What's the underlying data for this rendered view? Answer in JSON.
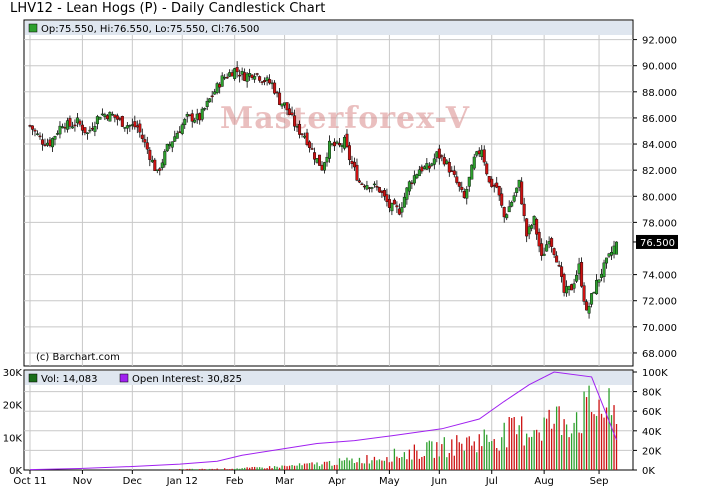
{
  "title": "LHV12 - Lean Hogs (P) - Daily Candlestick Chart",
  "ohlc_legend": "Op:75.550, Hi:76.550, Lo:75.550, Cl:76.500",
  "copyright": "(c) Barchart.com",
  "watermark": "Masterforex-V",
  "last_price_label": "76.500",
  "colors": {
    "up": "#2ea02e",
    "down": "#cc1111",
    "oi_line": "#a020f0",
    "vol_legend": "#1a6e1a",
    "grid": "#c8c8c8",
    "frame": "#000000",
    "panel_bg": "#ffffff",
    "legend_bg": "#dfe6ef"
  },
  "volume_legend": "Vol: 14,083",
  "oi_legend": "Open Interest: 30,825",
  "chart_data": [
    {
      "type": "candlestick",
      "ylim": [
        67,
        93.5
      ],
      "y_ticks": [
        "92.000",
        "90.000",
        "88.000",
        "86.000",
        "84.000",
        "82.000",
        "80.000",
        "78.000",
        "76.500",
        "74.000",
        "72.000",
        "70.000",
        "68.000"
      ],
      "y_tick_values": [
        92,
        90,
        88,
        86,
        84,
        82,
        80,
        78,
        76.5,
        74,
        72,
        70,
        68
      ],
      "x_ticks": [
        "Oct 11",
        "Nov",
        "Dec",
        "Jan 12",
        "Feb",
        "Mar",
        "Apr",
        "May",
        "Jun",
        "Jul",
        "Aug",
        "Sep"
      ],
      "x_tick_days": [
        0,
        21,
        41,
        61,
        82,
        102,
        123,
        144,
        164,
        185,
        206,
        228
      ],
      "last": {
        "open": 75.55,
        "high": 76.55,
        "low": 75.55,
        "close": 76.5
      },
      "close_path_days": [
        0,
        5,
        8,
        13,
        16,
        19,
        23,
        28,
        33,
        38,
        43,
        47,
        51,
        55,
        59,
        63,
        68,
        72,
        77,
        82,
        86,
        90,
        93,
        97,
        100,
        102,
        104,
        107,
        110,
        114,
        117,
        120,
        124,
        126,
        128,
        132,
        136,
        140,
        144,
        148,
        152,
        156,
        160,
        163,
        166,
        170,
        174,
        178,
        181,
        184,
        187,
        190,
        193,
        196,
        199,
        202,
        205,
        208,
        211,
        214,
        217,
        220,
        223,
        226,
        229,
        232,
        235
      ],
      "close_path_values": [
        85.4,
        84.2,
        84.1,
        85.6,
        85.4,
        85.7,
        84.8,
        86.3,
        86.2,
        85.5,
        85.3,
        83.6,
        81.7,
        83.7,
        84.9,
        86.0,
        86.0,
        87.4,
        89.0,
        89.7,
        89.2,
        89.5,
        89.0,
        88.6,
        87.3,
        87.0,
        86.3,
        85.1,
        84.7,
        83.1,
        82.2,
        83.9,
        83.8,
        84.2,
        82.9,
        81.1,
        80.9,
        80.5,
        79.2,
        78.9,
        81.0,
        82.1,
        82.2,
        83.2,
        82.8,
        81.4,
        79.8,
        82.8,
        83.7,
        81.0,
        80.7,
        78.4,
        79.6,
        81.0,
        77.0,
        78.2,
        75.2,
        76.9,
        75.3,
        72.6,
        73.0,
        74.6,
        71.0,
        72.9,
        74.2,
        75.3,
        76.5
      ]
    },
    {
      "type": "bar+line",
      "ylim_volume": [
        0,
        30000
      ],
      "y_ticks_volume": [
        "30K",
        "20K",
        "10K",
        "0K"
      ],
      "y_tick_values_volume": [
        30000,
        20000,
        10000,
        0
      ],
      "ylim_oi": [
        0,
        100000
      ],
      "y_ticks_oi": [
        "100K",
        "80K",
        "60K",
        "40K",
        "20K",
        "0K"
      ],
      "y_tick_values_oi": [
        100000,
        80000,
        60000,
        40000,
        20000,
        0
      ],
      "oi_days": [
        0,
        20,
        40,
        60,
        75,
        85,
        100,
        115,
        130,
        145,
        165,
        180,
        190,
        200,
        210,
        225,
        235
      ],
      "oi_values": [
        400,
        1500,
        3500,
        6000,
        9000,
        15000,
        21000,
        27000,
        30000,
        35000,
        42000,
        52000,
        70000,
        87000,
        100000,
        95000,
        30825
      ],
      "volume_start_day": 60,
      "volume_peak_day": 226,
      "volume_peak": 26000,
      "last_volume": 14083
    }
  ]
}
